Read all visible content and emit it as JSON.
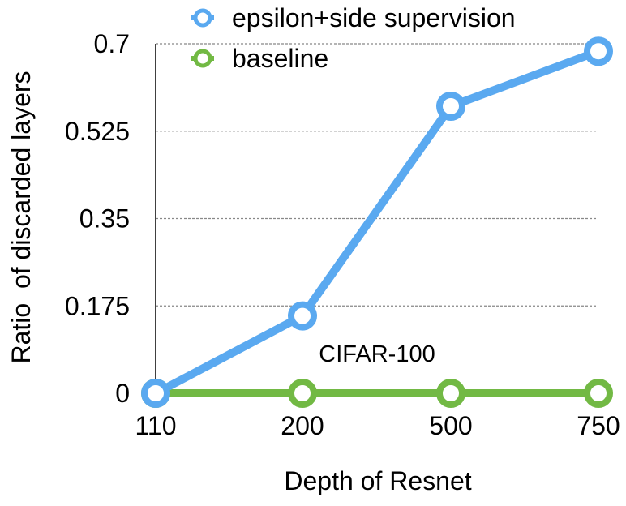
{
  "chart_data": {
    "type": "line",
    "title": "",
    "annotation": "CIFAR-100",
    "xlabel": "Depth of Resnet",
    "ylabel": "Ratio  of discarded layers",
    "categories": [
      "110",
      "200",
      "500",
      "750"
    ],
    "y_ticks": [
      "0",
      "0.175",
      "0.35",
      "0.525",
      "0.7"
    ],
    "ylim": [
      0,
      0.7
    ],
    "grid": "horizontal dashed",
    "legend_position": "top",
    "series": [
      {
        "name": "epsilon+side supervision",
        "color": "#5AA9F0",
        "values": [
          0.0,
          0.155,
          0.575,
          0.685
        ]
      },
      {
        "name": "baseline",
        "color": "#72B944",
        "values": [
          0.0,
          0.0,
          0.0,
          0.0
        ]
      }
    ]
  }
}
